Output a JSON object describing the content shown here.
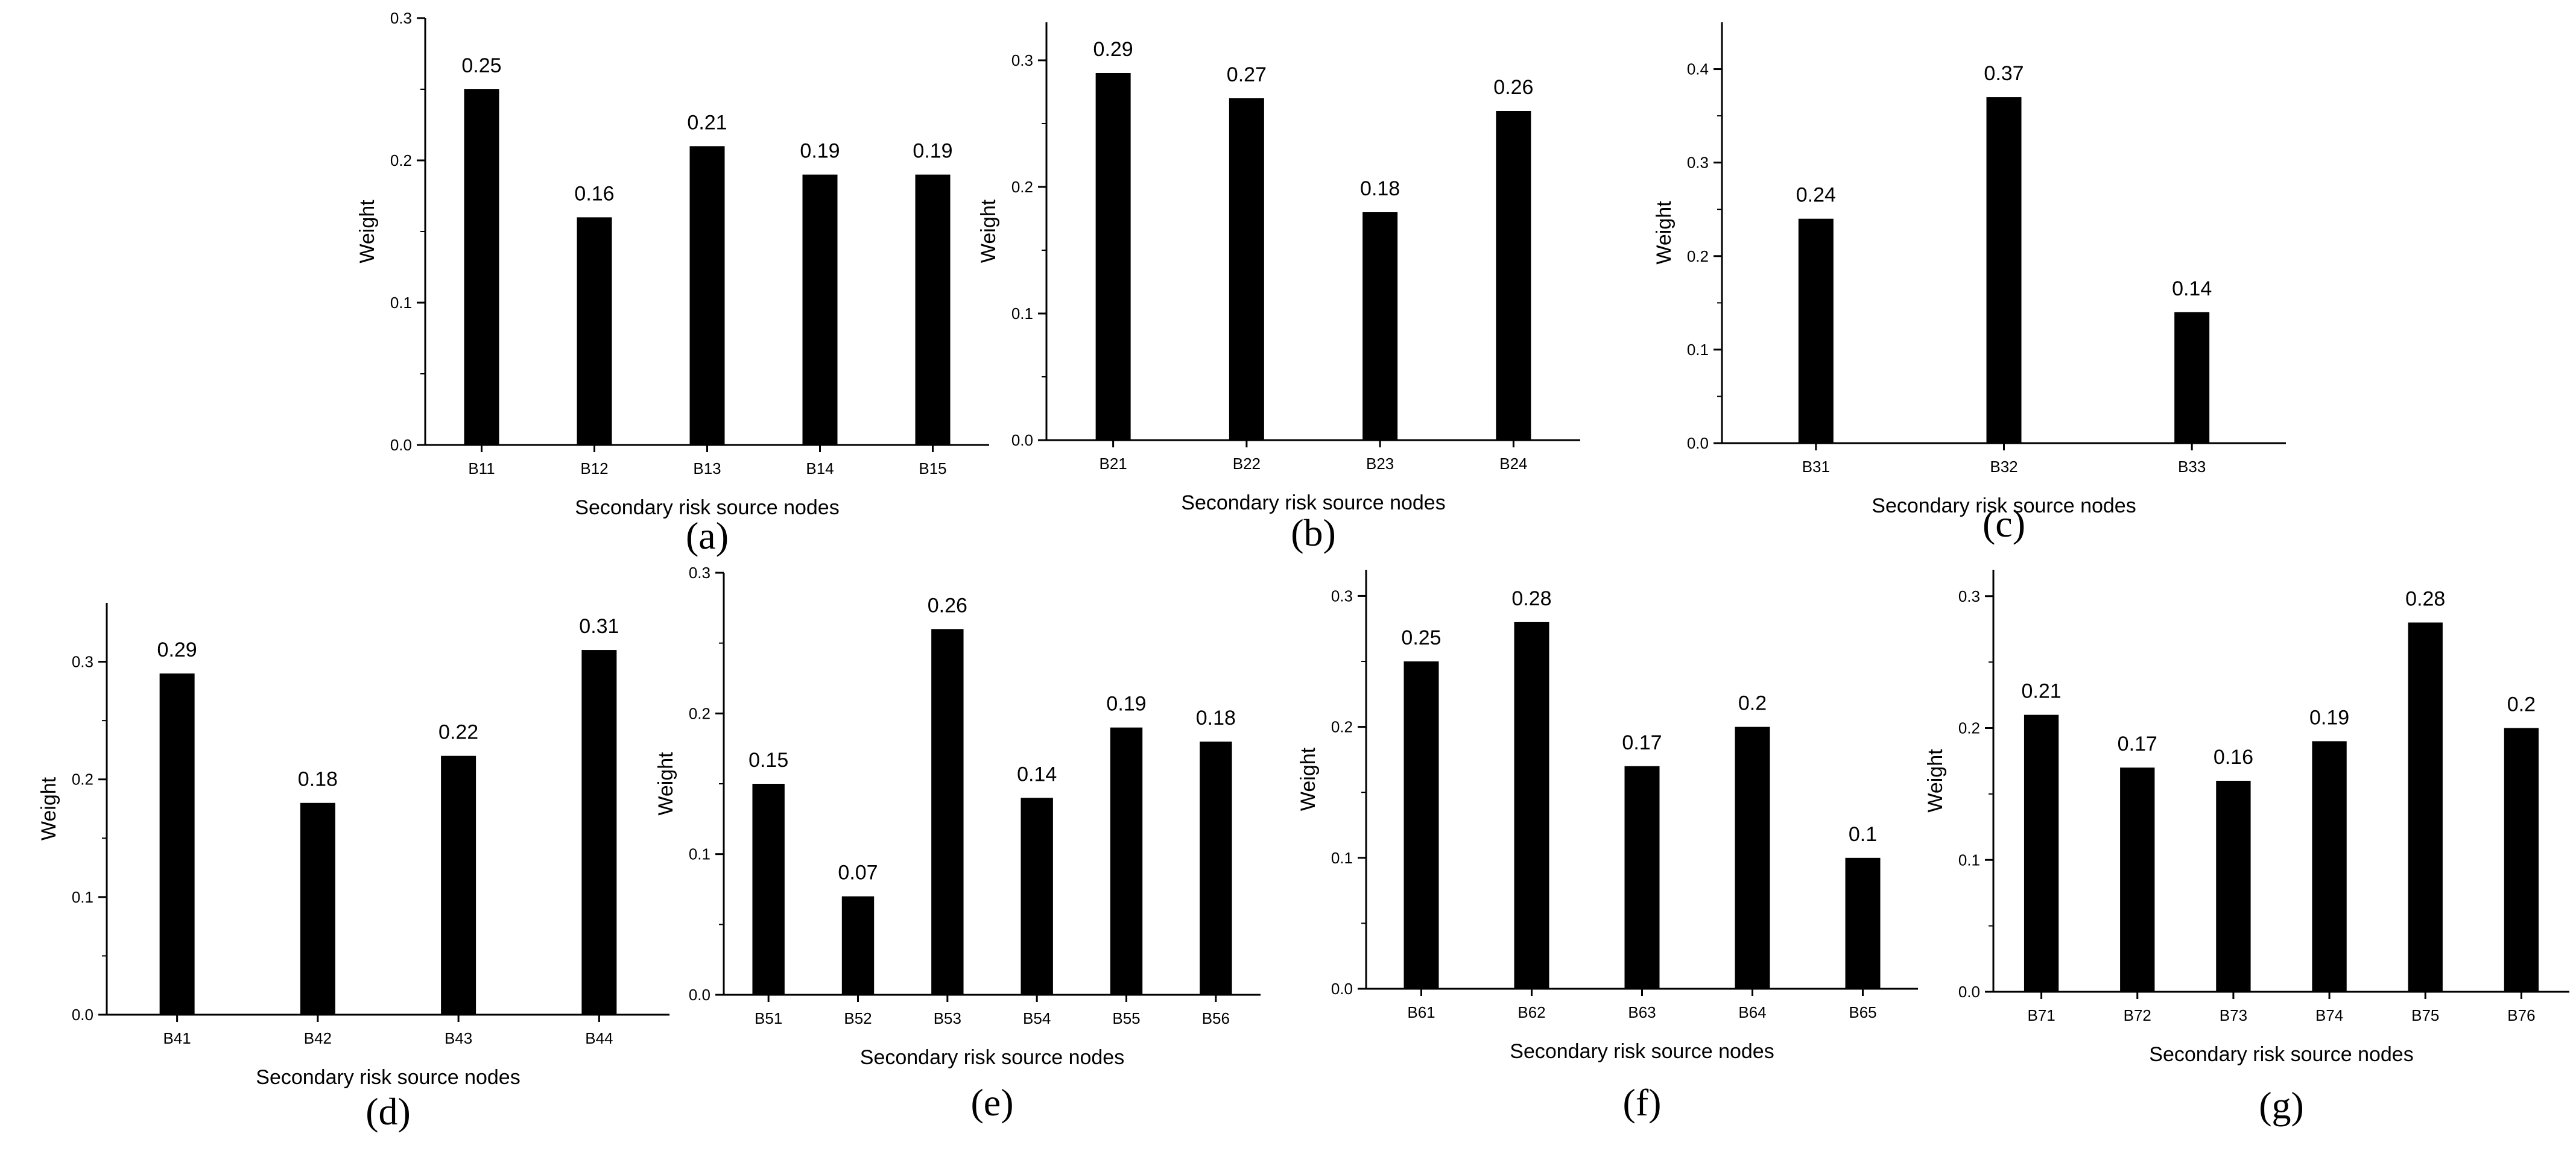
{
  "figure": {
    "bar_color": "#000000",
    "axis_color": "#000000",
    "background": "#ffffff"
  },
  "chart_data": [
    {
      "panel": "(a)",
      "type": "bar",
      "categories": [
        "B11",
        "B12",
        "B13",
        "B14",
        "B15"
      ],
      "values": [
        0.25,
        0.16,
        0.21,
        0.19,
        0.19
      ],
      "data_labels": [
        "0.25",
        "0.16",
        "0.21",
        "0.19",
        "0.19"
      ],
      "xlabel": "Secondary risk source nodes",
      "ylabel": "Weight",
      "ylim": [
        0,
        0.3
      ],
      "yticks": [
        0.0,
        0.1,
        0.2,
        0.3
      ],
      "ytick_labels": [
        "0.0",
        "0.1",
        "0.2",
        "0.3"
      ],
      "grid": false
    },
    {
      "panel": "(b)",
      "type": "bar",
      "categories": [
        "B21",
        "B22",
        "B23",
        "B24"
      ],
      "values": [
        0.29,
        0.27,
        0.18,
        0.26
      ],
      "data_labels": [
        "0.29",
        "0.27",
        "0.18",
        "0.26"
      ],
      "xlabel": "Secondary risk source nodes",
      "ylabel": "Weight",
      "ylim": [
        0,
        0.33
      ],
      "yticks": [
        0.0,
        0.1,
        0.2,
        0.3
      ],
      "ytick_labels": [
        "0.0",
        "0.1",
        "0.2",
        "0.3"
      ],
      "grid": false
    },
    {
      "panel": "(c)",
      "type": "bar",
      "categories": [
        "B31",
        "B32",
        "B33"
      ],
      "values": [
        0.24,
        0.37,
        0.14
      ],
      "data_labels": [
        "0.24",
        "0.37",
        "0.14"
      ],
      "xlabel": "Secondary risk source nodes",
      "ylabel": "Weight",
      "ylim": [
        0,
        0.45
      ],
      "yticks": [
        0.0,
        0.1,
        0.2,
        0.3,
        0.4
      ],
      "ytick_labels": [
        "0.0",
        "0.1",
        "0.2",
        "0.3",
        "0.4"
      ],
      "grid": false
    },
    {
      "panel": "(d)",
      "type": "bar",
      "categories": [
        "B41",
        "B42",
        "B43",
        "B44"
      ],
      "values": [
        0.29,
        0.18,
        0.22,
        0.31
      ],
      "data_labels": [
        "0.29",
        "0.18",
        "0.22",
        "0.31"
      ],
      "xlabel": "Secondary risk source nodes",
      "ylabel": "Weight",
      "ylim": [
        0,
        0.35
      ],
      "yticks": [
        0.0,
        0.1,
        0.2,
        0.3
      ],
      "ytick_labels": [
        "0.0",
        "0.1",
        "0.2",
        "0.3"
      ],
      "grid": false
    },
    {
      "panel": "(e)",
      "type": "bar",
      "categories": [
        "B51",
        "B52",
        "B53",
        "B54",
        "B55",
        "B56"
      ],
      "values": [
        0.15,
        0.07,
        0.26,
        0.14,
        0.19,
        0.18
      ],
      "data_labels": [
        "0.15",
        "0.07",
        "0.26",
        "0.14",
        "0.19",
        "0.18"
      ],
      "xlabel": "Secondary risk source nodes",
      "ylabel": "Weight",
      "ylim": [
        0,
        0.3
      ],
      "yticks": [
        0.0,
        0.1,
        0.2,
        0.3
      ],
      "ytick_labels": [
        "0.0",
        "0.1",
        "0.2",
        "0.3"
      ],
      "grid": false
    },
    {
      "panel": "(f)",
      "type": "bar",
      "categories": [
        "B61",
        "B62",
        "B63",
        "B64",
        "B65"
      ],
      "values": [
        0.25,
        0.28,
        0.17,
        0.2,
        0.1
      ],
      "data_labels": [
        "0.25",
        "0.28",
        "0.17",
        "0.2",
        "0.1"
      ],
      "xlabel": "Secondary risk source nodes",
      "ylabel": "Weight",
      "ylim": [
        0,
        0.32
      ],
      "yticks": [
        0.0,
        0.1,
        0.2,
        0.3
      ],
      "ytick_labels": [
        "0.0",
        "0.1",
        "0.2",
        "0.3"
      ],
      "grid": false
    },
    {
      "panel": "(g)",
      "type": "bar",
      "categories": [
        "B71",
        "B72",
        "B73",
        "B74",
        "B75",
        "B76"
      ],
      "values": [
        0.21,
        0.17,
        0.16,
        0.19,
        0.28,
        0.2
      ],
      "data_labels": [
        "0.21",
        "0.17",
        "0.16",
        "0.19",
        "0.28",
        "0.2"
      ],
      "xlabel": "Secondary risk source nodes",
      "ylabel": "Weight",
      "ylim": [
        0,
        0.32
      ],
      "yticks": [
        0.0,
        0.1,
        0.2,
        0.3
      ],
      "ytick_labels": [
        "0.0",
        "0.1",
        "0.2",
        "0.3"
      ],
      "grid": false
    }
  ]
}
